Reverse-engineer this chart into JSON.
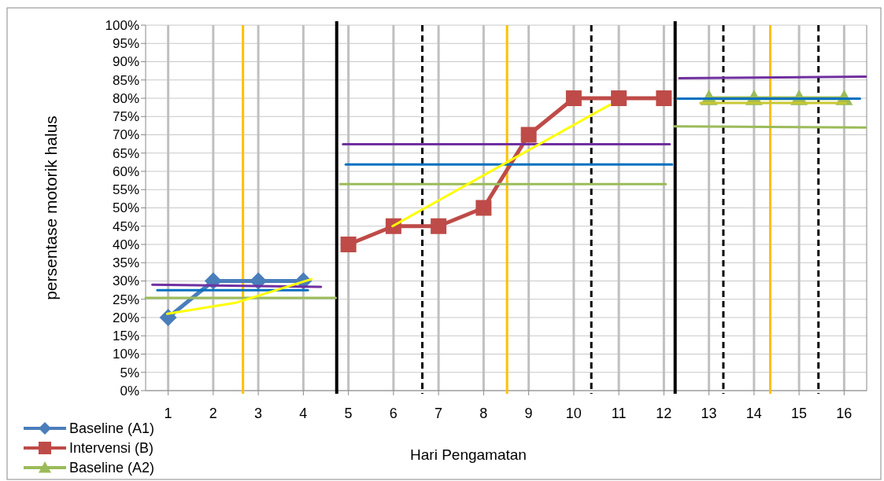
{
  "chart_data": {
    "type": "line",
    "xlabel": "Hari Pengamatan",
    "ylabel": "persentase motorik halus",
    "x": [
      1,
      2,
      3,
      4,
      5,
      6,
      7,
      8,
      9,
      10,
      11,
      12,
      13,
      14,
      15,
      16
    ],
    "xlim": [
      0.5,
      16.5
    ],
    "xticks": [
      1,
      2,
      3,
      4,
      5,
      6,
      7,
      8,
      9,
      10,
      11,
      12,
      13,
      14,
      15,
      16
    ],
    "ylim": [
      0,
      100
    ],
    "yticks": [
      {
        "value": 0,
        "label": "0%"
      },
      {
        "value": 5,
        "label": "5%"
      },
      {
        "value": 10,
        "label": "10%"
      },
      {
        "value": 15,
        "label": "15%"
      },
      {
        "value": 20,
        "label": "20%"
      },
      {
        "value": 25,
        "label": "25%"
      },
      {
        "value": 30,
        "label": "30%"
      },
      {
        "value": 35,
        "label": "35%"
      },
      {
        "value": 40,
        "label": "40%"
      },
      {
        "value": 45,
        "label": "45%"
      },
      {
        "value": 50,
        "label": "50%"
      },
      {
        "value": 55,
        "label": "55%"
      },
      {
        "value": 60,
        "label": "60%"
      },
      {
        "value": 65,
        "label": "65%"
      },
      {
        "value": 70,
        "label": "70%"
      },
      {
        "value": 75,
        "label": "75%"
      },
      {
        "value": 80,
        "label": "80%"
      },
      {
        "value": 85,
        "label": "85%"
      },
      {
        "value": 90,
        "label": "90%"
      },
      {
        "value": 95,
        "label": "95%"
      },
      {
        "value": 100,
        "label": "100%"
      }
    ],
    "grid": true,
    "legend": "bottom left",
    "series": [
      {
        "name": "Baseline (A1)",
        "color": "#4a7ebb",
        "marker": "diamond",
        "values": [
          20,
          30,
          30,
          30,
          null,
          null,
          null,
          null,
          null,
          null,
          null,
          null,
          null,
          null,
          null,
          null
        ]
      },
      {
        "name": "Intervensi (B)",
        "color": "#be4b48",
        "marker": "square",
        "values": [
          null,
          null,
          null,
          null,
          40,
          45,
          45,
          50,
          70,
          80,
          80,
          80,
          null,
          null,
          null,
          null
        ]
      },
      {
        "name": "Baseline (A2)",
        "color": "#9bbb59",
        "marker": "triangle",
        "values": [
          null,
          null,
          null,
          null,
          null,
          null,
          null,
          null,
          null,
          null,
          null,
          null,
          80,
          80,
          80,
          80
        ]
      },
      {
        "type": "line",
        "color": "#7030a0",
        "marker": "none",
        "x": [
          0.65,
          4.39
        ],
        "values": [
          29,
          28.4
        ]
      },
      {
        "type": "line",
        "color": "#0070c0",
        "marker": "none",
        "x": [
          0.76,
          4.1
        ],
        "values": [
          27.5,
          27.5
        ]
      },
      {
        "type": "line",
        "color": "#9bbb59",
        "marker": "none",
        "x": [
          0.5,
          4.72
        ],
        "values": [
          25.4,
          25.4
        ]
      },
      {
        "type": "line",
        "color": "#ffff00",
        "marker": "none",
        "x": [
          0.98,
          2.52,
          4.18
        ],
        "values": [
          21,
          24.1,
          30.5
        ]
      },
      {
        "type": "line",
        "color": "#7030a0",
        "marker": "none",
        "x": [
          4.88,
          12.13
        ],
        "values": [
          67.4,
          67.4
        ]
      },
      {
        "type": "line",
        "color": "#0070c0",
        "marker": "none",
        "x": [
          4.94,
          12.18
        ],
        "values": [
          61.9,
          61.9
        ]
      },
      {
        "type": "line",
        "color": "#9bbb59",
        "marker": "none",
        "x": [
          4.82,
          12.04
        ],
        "values": [
          56.5,
          56.5
        ]
      },
      {
        "type": "line",
        "color": "#ffff00",
        "marker": "none",
        "x": [
          5.98,
          10.8
        ],
        "values": [
          45,
          78.2
        ]
      },
      {
        "type": "line",
        "color": "#7030a0",
        "marker": "none",
        "x": [
          12.34,
          16.48
        ],
        "values": [
          85.5,
          85.9
        ]
      },
      {
        "type": "line",
        "color": "#9bbb59",
        "marker": "none",
        "x": [
          12.23,
          16.48
        ],
        "values": [
          72.3,
          72
        ]
      },
      {
        "type": "line",
        "color": "#c8c832",
        "marker": "none",
        "x": [
          12.81,
          16.04
        ],
        "values": [
          78.7,
          78.7
        ]
      },
      {
        "type": "line",
        "color": "#0070c0",
        "marker": "none",
        "x": [
          12.31,
          16.35
        ],
        "values": [
          79.9,
          79.9
        ]
      }
    ],
    "ref_lines": [
      {
        "axis": "x",
        "value": 2.66,
        "color": "#ffc000",
        "line_style": "solid"
      },
      {
        "axis": "x",
        "value": 4.74,
        "color": "#000000",
        "line_style": "solid"
      },
      {
        "axis": "x",
        "value": 6.64,
        "color": "#000000",
        "line_style": "dashed"
      },
      {
        "axis": "x",
        "value": 8.52,
        "color": "#ffc000",
        "line_style": "solid"
      },
      {
        "axis": "x",
        "value": 10.39,
        "color": "#000000",
        "line_style": "dashed"
      },
      {
        "axis": "x",
        "value": 12.25,
        "color": "#000000",
        "line_style": "solid"
      },
      {
        "axis": "x",
        "value": 13.32,
        "color": "#000000",
        "line_style": "dashed"
      },
      {
        "axis": "x",
        "value": 14.36,
        "color": "#ffc000",
        "line_style": "solid"
      },
      {
        "axis": "x",
        "value": 15.43,
        "color": "#000000",
        "line_style": "dashed"
      }
    ]
  }
}
